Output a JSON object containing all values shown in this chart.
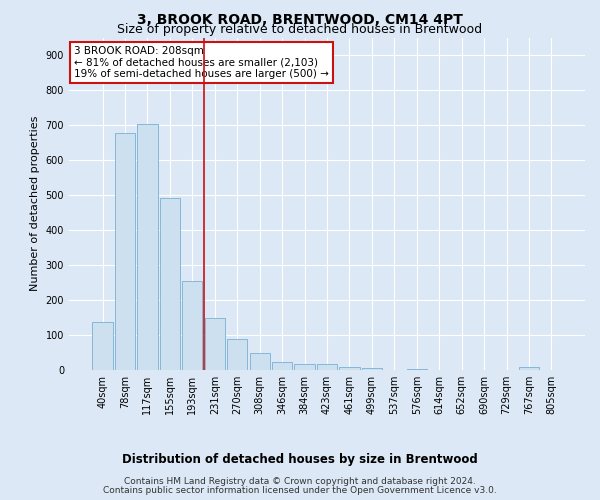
{
  "title": "3, BROOK ROAD, BRENTWOOD, CM14 4PT",
  "subtitle": "Size of property relative to detached houses in Brentwood",
  "xlabel": "Distribution of detached houses by size in Brentwood",
  "ylabel": "Number of detached properties",
  "bar_labels": [
    "40sqm",
    "78sqm",
    "117sqm",
    "155sqm",
    "193sqm",
    "231sqm",
    "270sqm",
    "308sqm",
    "346sqm",
    "384sqm",
    "423sqm",
    "461sqm",
    "499sqm",
    "537sqm",
    "576sqm",
    "614sqm",
    "652sqm",
    "690sqm",
    "729sqm",
    "767sqm",
    "805sqm"
  ],
  "bar_values": [
    138,
    678,
    703,
    492,
    253,
    150,
    88,
    50,
    24,
    18,
    16,
    10,
    7,
    0,
    4,
    0,
    0,
    0,
    0,
    8,
    0
  ],
  "bar_color": "#cce0f0",
  "bar_edge_color": "#7ab0d4",
  "ylim": [
    0,
    950
  ],
  "yticks": [
    0,
    100,
    200,
    300,
    400,
    500,
    600,
    700,
    800,
    900
  ],
  "vline_x": 4.5,
  "vline_color": "#cc1111",
  "annotation_title": "3 BROOK ROAD: 208sqm",
  "annotation_line1": "← 81% of detached houses are smaller (2,103)",
  "annotation_line2": "19% of semi-detached houses are larger (500) →",
  "annotation_box_color": "#cc1111",
  "footnote1": "Contains HM Land Registry data © Crown copyright and database right 2024.",
  "footnote2": "Contains public sector information licensed under the Open Government Licence v3.0.",
  "background_color": "#dce8f5",
  "plot_bg_color": "#dce8f5",
  "grid_color": "#ffffff",
  "title_fontsize": 10,
  "subtitle_fontsize": 9,
  "xlabel_fontsize": 8.5,
  "ylabel_fontsize": 8,
  "tick_fontsize": 7,
  "footnote_fontsize": 6.5,
  "annotation_fontsize": 7.5
}
